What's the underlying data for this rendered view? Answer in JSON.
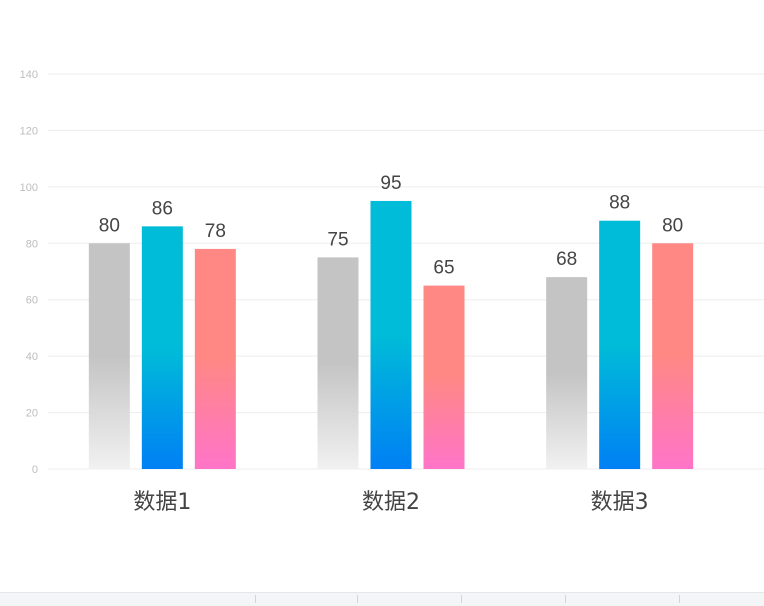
{
  "chart_data": {
    "type": "bar",
    "title": "",
    "xlabel": "",
    "ylabel": "",
    "ylim": [
      0,
      140
    ],
    "yticks": [
      0,
      20,
      40,
      60,
      80,
      100,
      120,
      140
    ],
    "grid": true,
    "legend": "none",
    "categories": [
      "数据1",
      "数据2",
      "数据3"
    ],
    "series": [
      {
        "values": [
          80,
          75,
          68
        ],
        "color": "#c4c4c4",
        "color_end": "#f1f1f1"
      },
      {
        "values": [
          86,
          95,
          88
        ],
        "color": "#00bcd8",
        "color_end": "#0080f4"
      },
      {
        "values": [
          78,
          65,
          80
        ],
        "color": "#ff8885",
        "color_end": "#ff74c8"
      }
    ],
    "data_labels": true
  }
}
